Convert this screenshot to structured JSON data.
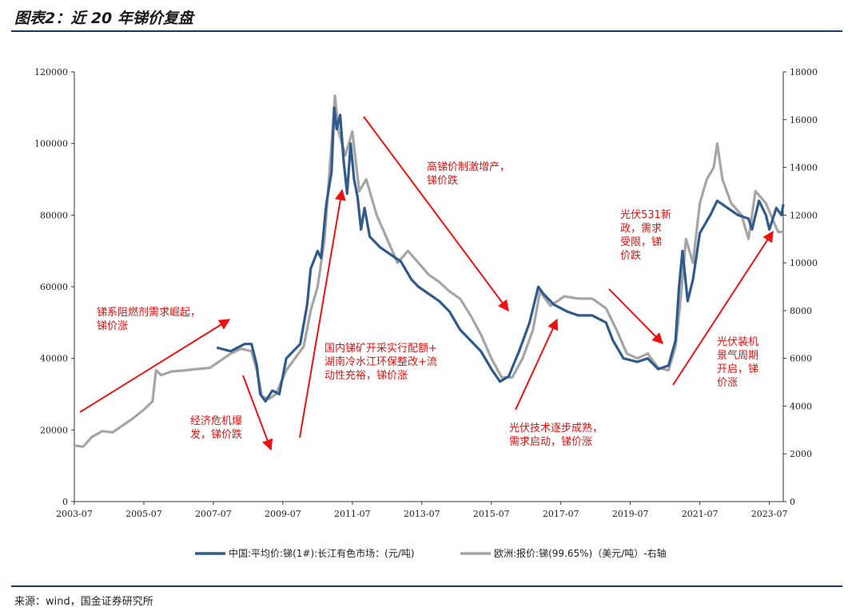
{
  "header": {
    "title": "图表2：近 20 年锑价复盘"
  },
  "footer": {
    "source": "来源：wind，国金证券研究所"
  },
  "chart_data": {
    "type": "line",
    "title": "",
    "xlabel": "",
    "ylabel": "",
    "x_ticks": [
      "2003-07",
      "2005-07",
      "2007-07",
      "2009-07",
      "2011-07",
      "2013-07",
      "2015-07",
      "2017-07",
      "2019-07",
      "2021-07",
      "2023-07"
    ],
    "x_range": [
      2003.5,
      2023.9
    ],
    "y_left_range": [
      0,
      120000
    ],
    "y_left_ticks": [
      "0",
      "20000",
      "40000",
      "60000",
      "80000",
      "100000",
      "120000"
    ],
    "y_right_range": [
      0,
      18000
    ],
    "y_right_ticks": [
      "0",
      "2000",
      "4000",
      "6000",
      "8000",
      "10000",
      "12000",
      "14000",
      "16000",
      "18000"
    ],
    "grid": false,
    "legend_position": "bottom",
    "series": [
      {
        "name": "中国:平均价:锑(1#):长江有色市场：(元/吨)",
        "axis": "left",
        "color": "#2f5a8a",
        "points": [
          [
            2007.6,
            43000
          ],
          [
            2007.8,
            42500
          ],
          [
            2008.0,
            42000
          ],
          [
            2008.2,
            43000
          ],
          [
            2008.4,
            44000
          ],
          [
            2008.6,
            44000
          ],
          [
            2008.75,
            38000
          ],
          [
            2008.85,
            30000
          ],
          [
            2009.0,
            28000
          ],
          [
            2009.2,
            31000
          ],
          [
            2009.4,
            30000
          ],
          [
            2009.6,
            40000
          ],
          [
            2009.8,
            42000
          ],
          [
            2010.0,
            44000
          ],
          [
            2010.2,
            55000
          ],
          [
            2010.3,
            65000
          ],
          [
            2010.5,
            70000
          ],
          [
            2010.6,
            68000
          ],
          [
            2010.75,
            83000
          ],
          [
            2010.9,
            92000
          ],
          [
            2010.98,
            110000
          ],
          [
            2011.05,
            104000
          ],
          [
            2011.15,
            108000
          ],
          [
            2011.25,
            95000
          ],
          [
            2011.35,
            86000
          ],
          [
            2011.45,
            100000
          ],
          [
            2011.55,
            90000
          ],
          [
            2011.65,
            85000
          ],
          [
            2011.75,
            76000
          ],
          [
            2011.85,
            82000
          ],
          [
            2012.0,
            74000
          ],
          [
            2012.3,
            71000
          ],
          [
            2012.6,
            69000
          ],
          [
            2012.9,
            67000
          ],
          [
            2013.2,
            62000
          ],
          [
            2013.4,
            60000
          ],
          [
            2013.7,
            58000
          ],
          [
            2014.0,
            56000
          ],
          [
            2014.3,
            53000
          ],
          [
            2014.6,
            48000
          ],
          [
            2014.9,
            45000
          ],
          [
            2015.2,
            42000
          ],
          [
            2015.5,
            37000
          ],
          [
            2015.75,
            33500
          ],
          [
            2016.0,
            35000
          ],
          [
            2016.3,
            42000
          ],
          [
            2016.6,
            50000
          ],
          [
            2016.85,
            60000
          ],
          [
            2017.0,
            58000
          ],
          [
            2017.3,
            55000
          ],
          [
            2017.7,
            53000
          ],
          [
            2018.0,
            52000
          ],
          [
            2018.4,
            52000
          ],
          [
            2018.8,
            50000
          ],
          [
            2019.0,
            45000
          ],
          [
            2019.3,
            40000
          ],
          [
            2019.7,
            39000
          ],
          [
            2020.0,
            40000
          ],
          [
            2020.3,
            37000
          ],
          [
            2020.6,
            38000
          ],
          [
            2020.8,
            45000
          ],
          [
            2020.9,
            60000
          ],
          [
            2021.0,
            70000
          ],
          [
            2021.15,
            56000
          ],
          [
            2021.3,
            62000
          ],
          [
            2021.5,
            75000
          ],
          [
            2021.8,
            80000
          ],
          [
            2022.0,
            84000
          ],
          [
            2022.3,
            82000
          ],
          [
            2022.6,
            80000
          ],
          [
            2022.9,
            79000
          ],
          [
            2023.0,
            76000
          ],
          [
            2023.2,
            84000
          ],
          [
            2023.4,
            80000
          ],
          [
            2023.5,
            76000
          ],
          [
            2023.7,
            82000
          ],
          [
            2023.85,
            80000
          ],
          [
            2023.9,
            83000
          ]
        ]
      },
      {
        "name": "欧洲:报价:锑(99.65%)（美元/吨）-右轴",
        "axis": "right",
        "color": "#a5a5a5",
        "points": [
          [
            2003.5,
            2350
          ],
          [
            2003.75,
            2300
          ],
          [
            2004.0,
            2700
          ],
          [
            2004.3,
            2950
          ],
          [
            2004.6,
            2900
          ],
          [
            2004.9,
            3200
          ],
          [
            2005.2,
            3500
          ],
          [
            2005.5,
            3850
          ],
          [
            2005.75,
            4200
          ],
          [
            2005.85,
            5500
          ],
          [
            2006.0,
            5300
          ],
          [
            2006.3,
            5450
          ],
          [
            2006.7,
            5500
          ],
          [
            2007.0,
            5550
          ],
          [
            2007.4,
            5600
          ],
          [
            2007.7,
            5900
          ],
          [
            2008.0,
            6200
          ],
          [
            2008.3,
            6400
          ],
          [
            2008.6,
            6300
          ],
          [
            2008.75,
            5500
          ],
          [
            2008.9,
            4400
          ],
          [
            2009.1,
            4300
          ],
          [
            2009.3,
            4500
          ],
          [
            2009.6,
            5500
          ],
          [
            2009.9,
            6100
          ],
          [
            2010.1,
            6500
          ],
          [
            2010.3,
            8000
          ],
          [
            2010.5,
            9000
          ],
          [
            2010.7,
            11000
          ],
          [
            2010.9,
            15000
          ],
          [
            2011.0,
            17000
          ],
          [
            2011.1,
            15500
          ],
          [
            2011.3,
            14500
          ],
          [
            2011.5,
            15500
          ],
          [
            2011.7,
            13000
          ],
          [
            2011.9,
            13500
          ],
          [
            2012.2,
            12000
          ],
          [
            2012.5,
            11000
          ],
          [
            2012.8,
            10000
          ],
          [
            2013.1,
            10500
          ],
          [
            2013.4,
            10000
          ],
          [
            2013.7,
            9500
          ],
          [
            2014.0,
            9200
          ],
          [
            2014.3,
            8800
          ],
          [
            2014.6,
            8500
          ],
          [
            2014.9,
            7800
          ],
          [
            2015.2,
            7000
          ],
          [
            2015.5,
            6000
          ],
          [
            2015.8,
            5200
          ],
          [
            2016.1,
            5200
          ],
          [
            2016.4,
            6000
          ],
          [
            2016.7,
            7200
          ],
          [
            2016.9,
            8800
          ],
          [
            2017.2,
            8200
          ],
          [
            2017.6,
            8600
          ],
          [
            2018.0,
            8500
          ],
          [
            2018.4,
            8500
          ],
          [
            2018.8,
            8100
          ],
          [
            2019.1,
            7200
          ],
          [
            2019.4,
            6200
          ],
          [
            2019.7,
            6000
          ],
          [
            2020.0,
            6200
          ],
          [
            2020.3,
            5600
          ],
          [
            2020.6,
            5500
          ],
          [
            2020.8,
            6500
          ],
          [
            2020.95,
            8500
          ],
          [
            2021.1,
            11000
          ],
          [
            2021.3,
            10000
          ],
          [
            2021.5,
            12500
          ],
          [
            2021.7,
            13500
          ],
          [
            2021.9,
            14000
          ],
          [
            2022.0,
            15000
          ],
          [
            2022.15,
            13500
          ],
          [
            2022.4,
            12500
          ],
          [
            2022.7,
            12000
          ],
          [
            2022.9,
            11000
          ],
          [
            2023.1,
            13000
          ],
          [
            2023.4,
            12500
          ],
          [
            2023.6,
            11800
          ],
          [
            2023.75,
            11300
          ],
          [
            2023.9,
            11300
          ]
        ]
      }
    ],
    "annotations": [
      {
        "lines": [
          "锑系阻燃剂需求崛起，",
          "锑价涨"
        ]
      },
      {
        "lines": [
          "经济危机爆",
          "发，锑价跌"
        ]
      },
      {
        "lines": [
          "国内锑矿开采实行配额+",
          "湖南冷水江环保整改+流",
          "动性充裕，锑价涨"
        ]
      },
      {
        "lines": [
          "高锑价制激增产，",
          "锑价跌"
        ]
      },
      {
        "lines": [
          "光伏技术逐步成熟，",
          "需求启动，锑价涨"
        ]
      },
      {
        "lines": [
          "光伏531新",
          "政，需求",
          "受限，锑",
          "价跌"
        ]
      },
      {
        "lines": [
          "光伏装机",
          "景气周期",
          "开启，锑",
          "价涨"
        ]
      }
    ]
  }
}
